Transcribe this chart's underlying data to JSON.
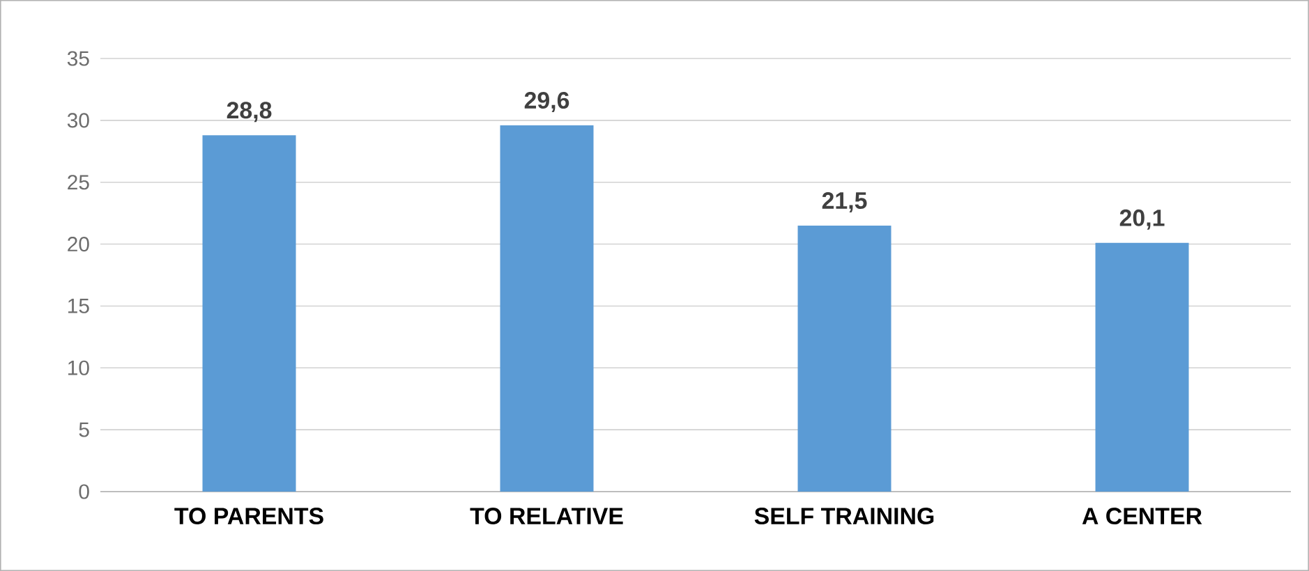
{
  "chart_data": {
    "type": "bar",
    "categories": [
      "TO PARENTS",
      "TO RELATIVE",
      "SELF TRAINING",
      "A CENTER"
    ],
    "values": [
      28.8,
      29.6,
      21.5,
      20.1
    ],
    "value_labels": [
      "28,8",
      "29,6",
      "21,5",
      "20,1"
    ],
    "color": "#5b9bd5",
    "ylim": [
      0,
      35
    ],
    "yticks": [
      0,
      5,
      10,
      15,
      20,
      25,
      30,
      35
    ],
    "grid": "y"
  }
}
